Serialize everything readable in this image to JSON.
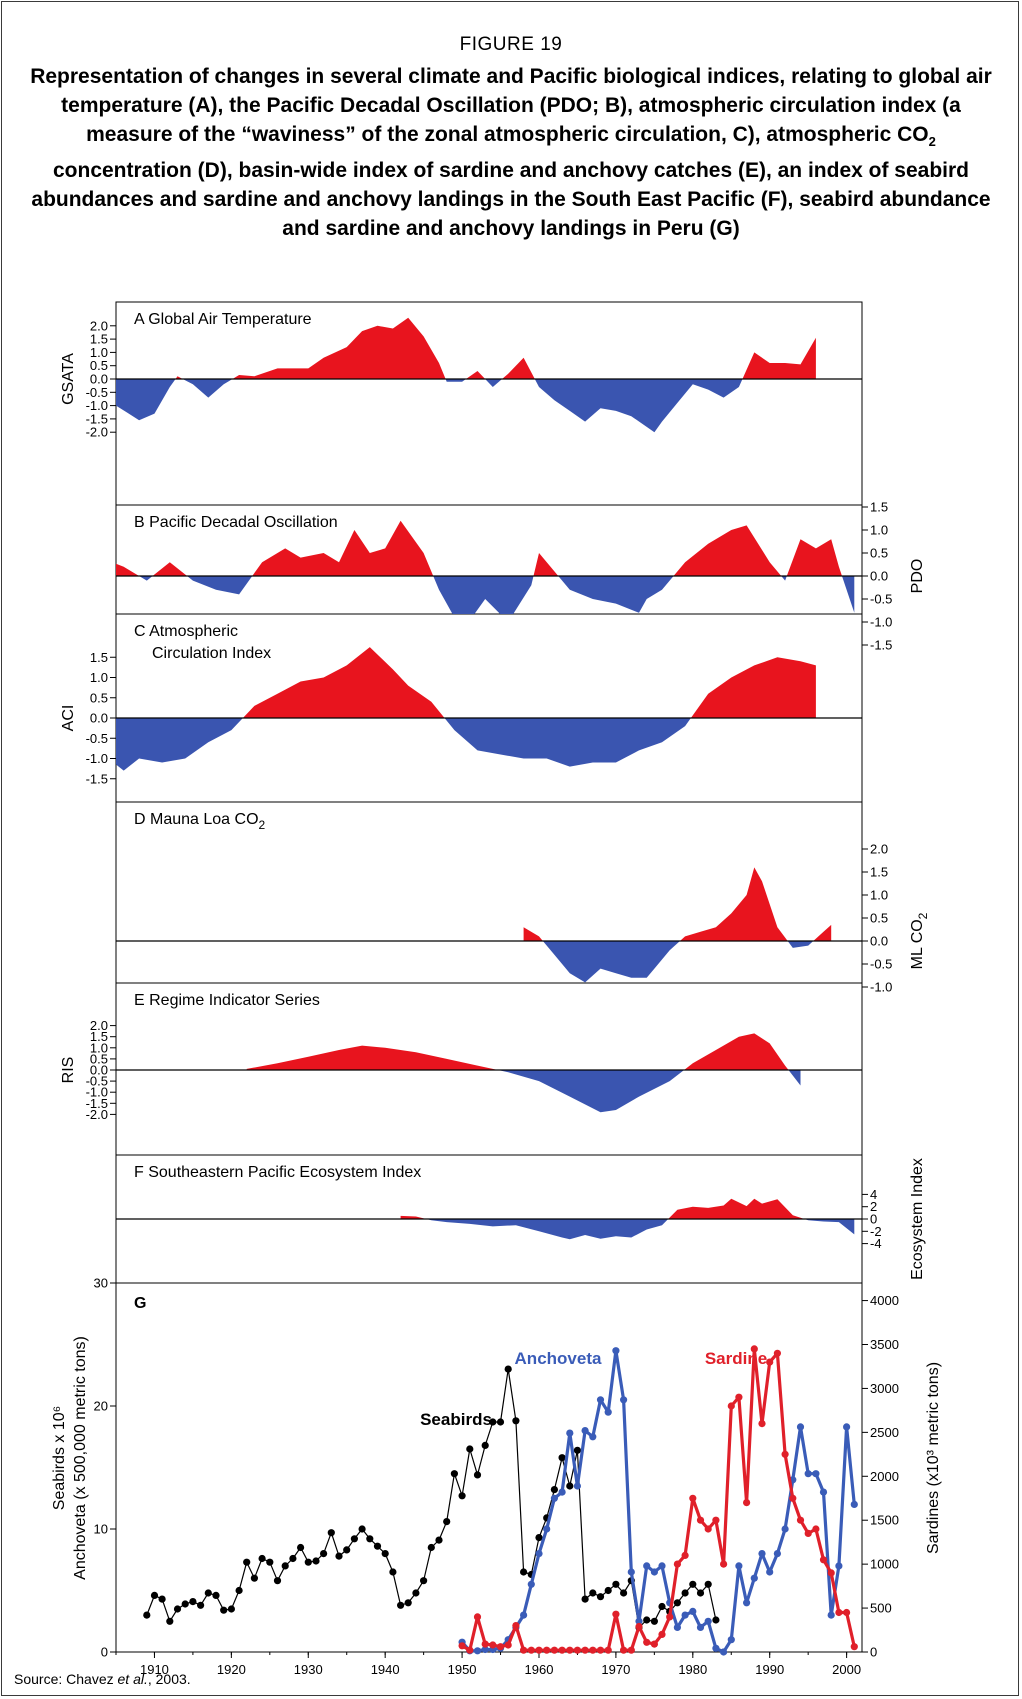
{
  "figure": {
    "label": "FIGURE 19",
    "title": "Representation of changes in several climate and Pacific biological indices, relating to global air temperature (A), the Pacific Decadal Oscillation (PDO; B), atmospheric circulation index (a measure of the “waviness” of the zonal atmospheric circulation, C), atmospheric CO₂ concentration (D), basin-wide index of sardine and anchovy catches (E), an index of seabird abundances and sardine and anchovy landings in the South East Pacific (F), seabird abundance and sardine and anchovy landings in Peru (G)",
    "source": "Source: Chavez et al., 2003."
  },
  "colors": {
    "positive": "#e8141e",
    "negative": "#3a55b0",
    "seabirds": "#000000",
    "anchoveta": "#3a5cb8",
    "sardine": "#e0202a"
  },
  "chart_data": [
    {
      "type": "area",
      "panel": "A",
      "title": "A Global Air Temperature",
      "ylabel": "GSATA",
      "axis_side": "left",
      "ylim": [
        -2,
        2.4
      ],
      "ticks": [
        "2.0",
        "1.5",
        "1.0",
        "0.5",
        "0.0",
        "-0.5",
        "-1.0",
        "-1.5",
        "-2.0"
      ],
      "x": [
        1900,
        1905,
        1908,
        1910,
        1912,
        1913,
        1915,
        1917,
        1919,
        1921,
        1923,
        1926,
        1930,
        1932,
        1935,
        1937,
        1939,
        1941,
        1943,
        1945,
        1947,
        1948,
        1950,
        1952,
        1954,
        1956,
        1958,
        1960,
        1962,
        1964,
        1966,
        1968,
        1970,
        1972,
        1974,
        1975,
        1976,
        1978,
        1980,
        1982,
        1984,
        1986,
        1988,
        1990,
        1992,
        1994,
        1996
      ],
      "y": [
        -0.5,
        -1.0,
        -1.55,
        -1.3,
        -0.3,
        0.1,
        -0.2,
        -0.7,
        -0.2,
        0.15,
        0.1,
        0.4,
        0.4,
        0.8,
        1.2,
        1.8,
        2.0,
        1.9,
        2.3,
        1.6,
        0.6,
        -0.1,
        -0.1,
        0.3,
        -0.3,
        0.2,
        0.8,
        -0.3,
        -0.8,
        -1.2,
        -1.6,
        -1.1,
        -1.2,
        -1.4,
        -1.8,
        -2.0,
        -1.6,
        -0.9,
        -0.2,
        -0.4,
        -0.7,
        -0.3,
        1.0,
        0.6,
        0.6,
        0.55,
        1.55
      ]
    },
    {
      "type": "area",
      "panel": "B",
      "title": "B Pacific Decadal Oscillation",
      "ylabel": "PDO",
      "axis_side": "right",
      "ylim": [
        -1.5,
        1.5
      ],
      "ticks": [
        "1.5",
        "1.0",
        "0.5",
        "0.0",
        "-0.5",
        "-1.0",
        "-1.5"
      ],
      "x": [
        1900,
        1903,
        1906,
        1909,
        1912,
        1915,
        1918,
        1921,
        1924,
        1927,
        1929,
        1932,
        1934,
        1936,
        1938,
        1940,
        1942,
        1945,
        1947,
        1950,
        1953,
        1956,
        1959,
        1960,
        1962,
        1964,
        1967,
        1970,
        1973,
        1974,
        1976,
        1979,
        1982,
        1985,
        1987,
        1990,
        1992,
        1994,
        1996,
        1998,
        1999,
        2001
      ],
      "y": [
        0.3,
        0.4,
        0.2,
        -0.1,
        0.3,
        -0.1,
        -0.3,
        -0.4,
        0.3,
        0.6,
        0.4,
        0.5,
        0.3,
        1.0,
        0.5,
        0.6,
        1.2,
        0.5,
        -0.3,
        -1.2,
        -0.5,
        -1.0,
        -0.2,
        0.5,
        0.1,
        -0.3,
        -0.5,
        -0.6,
        -0.8,
        -0.5,
        -0.3,
        0.3,
        0.7,
        1.0,
        1.1,
        0.3,
        -0.1,
        0.8,
        0.6,
        0.8,
        0.2,
        -0.8
      ]
    },
    {
      "type": "area",
      "panel": "C",
      "title": "C Atmospheric Circulation Index",
      "title_lines": [
        "C Atmospheric",
        "Circulation Index"
      ],
      "ylabel": "ACI",
      "axis_side": "left",
      "ylim": [
        -1.6,
        1.75
      ],
      "ticks": [
        "1.5",
        "1.0",
        "0.5",
        "0.0",
        "-0.5",
        "-1.0",
        "-1.5"
      ],
      "x": [
        1900,
        1902,
        1904,
        1906,
        1908,
        1911,
        1914,
        1917,
        1920,
        1923,
        1926,
        1929,
        1932,
        1935,
        1938,
        1941,
        1943,
        1946,
        1949,
        1952,
        1955,
        1958,
        1961,
        1964,
        1967,
        1970,
        1973,
        1976,
        1979,
        1982,
        1985,
        1988,
        1991,
        1994,
        1996
      ],
      "y": [
        -1.5,
        -1.2,
        -1.0,
        -1.3,
        -1.0,
        -1.1,
        -1.0,
        -0.6,
        -0.3,
        0.3,
        0.6,
        0.9,
        1.0,
        1.3,
        1.75,
        1.2,
        0.8,
        0.4,
        -0.3,
        -0.8,
        -0.9,
        -1.0,
        -1.0,
        -1.2,
        -1.1,
        -1.1,
        -0.8,
        -0.6,
        -0.2,
        0.6,
        1.0,
        1.3,
        1.5,
        1.4,
        1.3
      ]
    },
    {
      "type": "area",
      "panel": "D",
      "title": "D Mauna Loa CO2",
      "ylabel": "ML CO2",
      "axis_side": "right",
      "ylim": [
        -1.0,
        2.0
      ],
      "ticks": [
        "2.0",
        "1.5",
        "1.0",
        "0.5",
        "0.0",
        "-0.5",
        "-1.0"
      ],
      "x": [
        1958,
        1960,
        1962,
        1964,
        1966,
        1968,
        1970,
        1972,
        1974,
        1975,
        1977,
        1979,
        1981,
        1983,
        1985,
        1987,
        1988,
        1989,
        1991,
        1993,
        1995,
        1997,
        1998
      ],
      "y": [
        0.3,
        0.1,
        -0.3,
        -0.7,
        -0.9,
        -0.6,
        -0.7,
        -0.8,
        -0.8,
        -0.6,
        -0.2,
        0.1,
        0.2,
        0.3,
        0.6,
        1.0,
        1.6,
        1.3,
        0.3,
        -0.15,
        -0.1,
        0.2,
        0.35
      ]
    },
    {
      "type": "area",
      "panel": "E",
      "title": "E Regime Indicator Series",
      "ylabel": "RIS",
      "axis_side": "left",
      "ylim": [
        -2.0,
        2.0
      ],
      "ticks": [
        "2.0",
        "1.5",
        "1.0",
        "0.5",
        "0.0",
        "-0.5",
        "-1.0",
        "-1.5",
        "-2.0"
      ],
      "x": [
        1922,
        1926,
        1930,
        1934,
        1937,
        1940,
        1944,
        1948,
        1952,
        1956,
        1960,
        1964,
        1968,
        1970,
        1973,
        1977,
        1980,
        1983,
        1986,
        1988,
        1990,
        1992,
        1994
      ],
      "y": [
        0.05,
        0.3,
        0.6,
        0.9,
        1.1,
        1.0,
        0.8,
        0.5,
        0.2,
        -0.1,
        -0.5,
        -1.2,
        -1.9,
        -1.8,
        -1.2,
        -0.5,
        0.3,
        0.9,
        1.5,
        1.65,
        1.2,
        0.2,
        -0.7
      ]
    },
    {
      "type": "area",
      "panel": "F",
      "title": "F Southeastern Pacific Ecosystem Index",
      "ylabel": "Ecosystem Index",
      "axis_side": "right",
      "ylim": [
        -5,
        5
      ],
      "ticks": [
        "4",
        "2",
        "0",
        "-2",
        "-4"
      ],
      "x": [
        1942,
        1944,
        1946,
        1948,
        1951,
        1954,
        1957,
        1960,
        1963,
        1964,
        1966,
        1968,
        1970,
        1972,
        1974,
        1976,
        1978,
        1980,
        1982,
        1984,
        1985,
        1987,
        1988,
        1989,
        1991,
        1993,
        1995,
        1997,
        1999,
        2001
      ],
      "y": [
        0.5,
        0.4,
        -0.2,
        -0.5,
        -0.8,
        -1.2,
        -1.0,
        -2.0,
        -3.0,
        -3.3,
        -2.6,
        -3.2,
        -2.8,
        -3.0,
        -1.7,
        -1.0,
        1.5,
        2.0,
        1.8,
        2.2,
        3.3,
        2.1,
        3.3,
        2.5,
        3.2,
        0.6,
        -0.2,
        -0.4,
        -0.5,
        -2.5
      ]
    },
    {
      "type": "line",
      "panel": "G",
      "title": "G",
      "xlim": [
        1905,
        2002
      ],
      "xticks": [
        "1910",
        "1920",
        "1930",
        "1940",
        "1950",
        "1960",
        "1970",
        "1980",
        "1990",
        "2000"
      ],
      "y_left": {
        "label_lines": [
          "Seabirds x 10⁶",
          "Anchoveta (x 500,000 metric tons)"
        ],
        "ylim": [
          0,
          30
        ],
        "ticks": [
          "0",
          "10",
          "20",
          "30"
        ]
      },
      "y_right": {
        "label": "Sardines (x10³ metric tons)",
        "ylim": [
          0,
          4200
        ],
        "ticks": [
          "0",
          "500",
          "1000",
          "1500",
          "2000",
          "2500",
          "3000",
          "3500",
          "4000"
        ]
      },
      "series": [
        {
          "name": "Seabirds",
          "axis": "left",
          "x": [
            1909,
            1910,
            1911,
            1912,
            1913,
            1914,
            1915,
            1916,
            1917,
            1918,
            1919,
            1920,
            1921,
            1922,
            1923,
            1924,
            1925,
            1926,
            1927,
            1928,
            1929,
            1930,
            1931,
            1932,
            1933,
            1934,
            1935,
            1936,
            1937,
            1938,
            1939,
            1940,
            1941,
            1942,
            1943,
            1944,
            1945,
            1946,
            1947,
            1948,
            1949,
            1950,
            1951,
            1952,
            1953,
            1954,
            1955,
            1956,
            1957,
            1958,
            1959,
            1960,
            1961,
            1962,
            1963,
            1964,
            1965,
            1966,
            1967,
            1968,
            1969,
            1970,
            1971,
            1972,
            1973,
            1974,
            1975,
            1976,
            1977,
            1978,
            1979,
            1980,
            1981,
            1982,
            1983
          ],
          "y": [
            3.0,
            4.6,
            4.3,
            2.5,
            3.5,
            3.9,
            4.1,
            3.8,
            4.8,
            4.6,
            3.4,
            3.5,
            5.0,
            7.3,
            6.0,
            7.6,
            7.3,
            5.8,
            7.0,
            7.6,
            8.5,
            7.3,
            7.4,
            8.0,
            9.7,
            7.8,
            8.3,
            9.2,
            10.0,
            9.2,
            8.6,
            8.0,
            6.5,
            3.8,
            4.0,
            4.8,
            5.8,
            8.5,
            9.1,
            10.6,
            14.5,
            12.7,
            16.5,
            14.4,
            16.8,
            18.7,
            18.7,
            23.0,
            18.8,
            6.5,
            6.3,
            9.3,
            10.9,
            13.2,
            15.8,
            13.5,
            16.4,
            4.3,
            4.8,
            4.5,
            5.0,
            5.5,
            4.8,
            5.8,
            2.0,
            2.6,
            2.5,
            3.7,
            3.3,
            4.0,
            4.8,
            5.5,
            4.8,
            5.5,
            2.6
          ]
        },
        {
          "name": "Anchoveta",
          "axis": "left",
          "x": [
            1950,
            1951,
            1952,
            1953,
            1954,
            1955,
            1956,
            1957,
            1958,
            1959,
            1960,
            1961,
            1962,
            1963,
            1964,
            1965,
            1966,
            1967,
            1968,
            1969,
            1970,
            1971,
            1972,
            1973,
            1974,
            1975,
            1976,
            1977,
            1978,
            1979,
            1980,
            1981,
            1982,
            1983,
            1984,
            1985,
            1986,
            1987,
            1988,
            1989,
            1990,
            1991,
            1992,
            1993,
            1994,
            1995,
            1996,
            1997,
            1998,
            1999,
            2000,
            2001
          ],
          "y": [
            0.8,
            0.1,
            0.1,
            0.2,
            0.2,
            0.3,
            1.0,
            2.0,
            3.0,
            5.5,
            8.0,
            10.0,
            12.5,
            13.0,
            17.8,
            13.5,
            18.0,
            17.5,
            20.5,
            19.5,
            24.5,
            20.5,
            6.5,
            2.5,
            7.0,
            6.5,
            7.0,
            4.0,
            2.0,
            3.0,
            3.3,
            2.0,
            2.5,
            0.3,
            0.0,
            1.0,
            7.0,
            4.0,
            6.0,
            8.0,
            6.5,
            8.0,
            10.0,
            14.0,
            18.3,
            14.5,
            14.5,
            13.0,
            3.0,
            7.0,
            18.3,
            12.0
          ]
        },
        {
          "name": "Sardine",
          "axis": "right",
          "x": [
            1950,
            1951,
            1952,
            1953,
            1954,
            1955,
            1956,
            1957,
            1958,
            1959,
            1960,
            1961,
            1962,
            1963,
            1964,
            1965,
            1966,
            1967,
            1968,
            1969,
            1970,
            1971,
            1972,
            1973,
            1974,
            1975,
            1976,
            1977,
            1978,
            1979,
            1980,
            1981,
            1982,
            1983,
            1984,
            1985,
            1986,
            1987,
            1988,
            1989,
            1990,
            1991,
            1992,
            1993,
            1994,
            1995,
            1996,
            1997,
            1998,
            1999,
            2000,
            2001
          ],
          "y": [
            70,
            20,
            400,
            90,
            80,
            60,
            80,
            300,
            20,
            20,
            20,
            20,
            20,
            20,
            20,
            20,
            20,
            20,
            20,
            20,
            430,
            20,
            20,
            290,
            110,
            90,
            200,
            400,
            1000,
            1100,
            1750,
            1500,
            1400,
            1500,
            1000,
            2800,
            2900,
            1700,
            3450,
            2600,
            3300,
            3400,
            2250,
            1750,
            1500,
            1350,
            1400,
            1050,
            900,
            450,
            450,
            60
          ]
        }
      ]
    }
  ]
}
